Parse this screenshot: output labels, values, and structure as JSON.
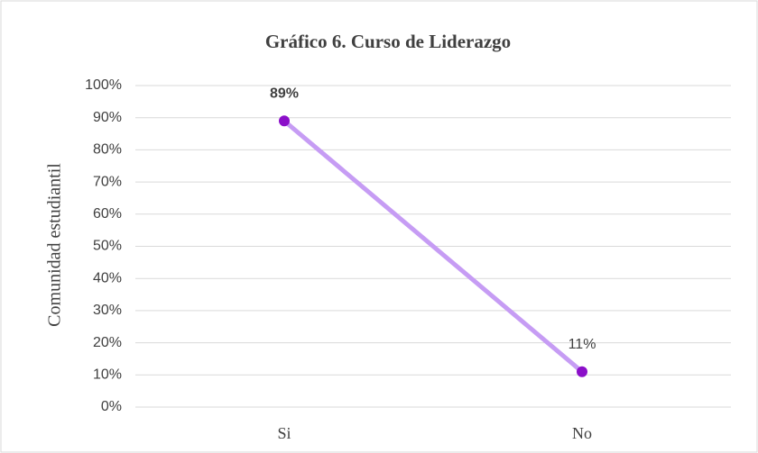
{
  "chart_data": {
    "type": "line",
    "title": "Gráfico 6. Curso de Liderazgo",
    "y_label": "Comunidad estudiantil",
    "categories": [
      "Si",
      "No"
    ],
    "series": [
      {
        "name": "Curso de Liderazgo",
        "color": "#c69cf4",
        "marker_color": "#8b0fc9",
        "values": [
          89,
          11
        ],
        "value_labels": [
          "89%",
          "11%"
        ]
      }
    ],
    "ylim": [
      0,
      100
    ],
    "yticks": [
      {
        "value": 0,
        "label": "0%"
      },
      {
        "value": 10,
        "label": "10%"
      },
      {
        "value": 20,
        "label": "20%"
      },
      {
        "value": 30,
        "label": "30%"
      },
      {
        "value": 40,
        "label": "40%"
      },
      {
        "value": 50,
        "label": "50%"
      },
      {
        "value": 60,
        "label": "60%"
      },
      {
        "value": 70,
        "label": "70%"
      },
      {
        "value": 80,
        "label": "80%"
      },
      {
        "value": 90,
        "label": "90%"
      },
      {
        "value": 100,
        "label": "100%"
      }
    ],
    "grid": true
  }
}
